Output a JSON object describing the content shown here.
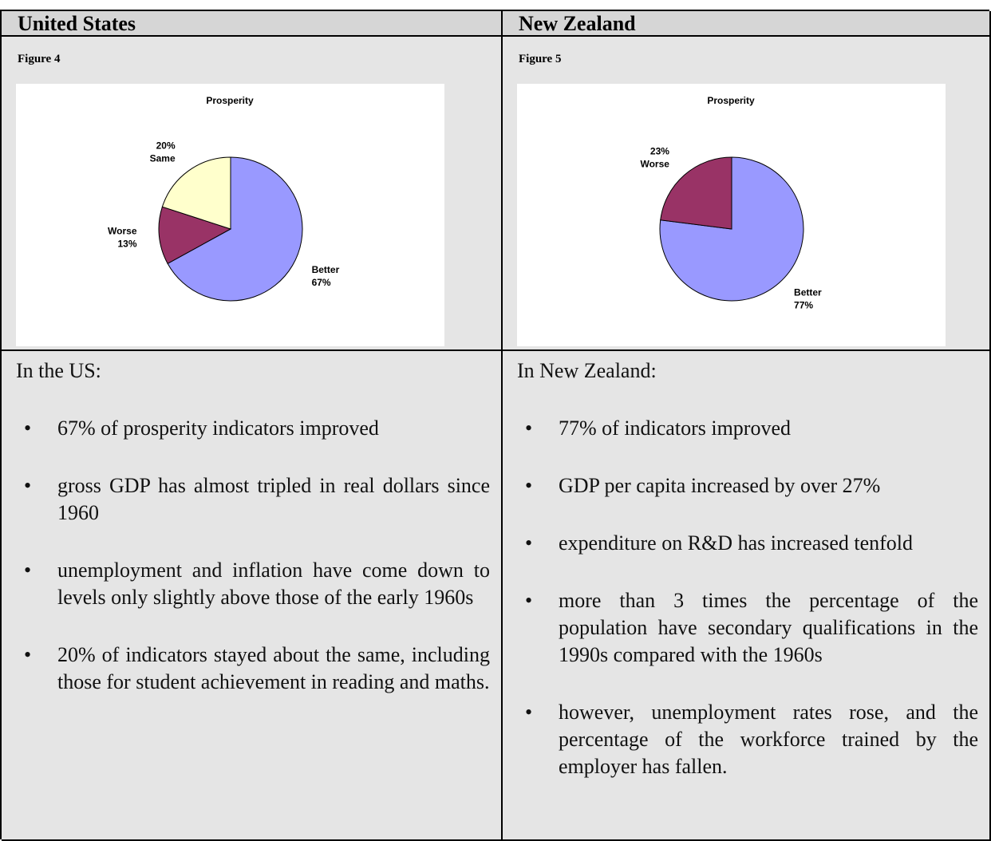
{
  "table": {
    "headings": [
      "United States",
      "New Zealand"
    ],
    "figure_labels": [
      "Figure 4",
      "Figure 5"
    ],
    "intros": [
      "In the US:",
      "In New Zealand:"
    ],
    "bullets": [
      [
        "67% of prosperity indicators improved",
        "gross GDP has almost tripled in real dollars since 1960",
        "unemployment and inflation have come down to levels only slightly above those of the early 1960s",
        "20% of indicators stayed about the same, including those for student achievement in reading and maths."
      ],
      [
        "77% of indicators improved",
        "GDP per capita increased by over 27%",
        "expenditure on R&D has increased tenfold",
        "more than 3 times the percentage of the population have secondary qualifications in the 1990s compared with the 1960s",
        "however, unemployment rates rose, and the percentage of the workforce trained by the employer has fallen."
      ]
    ]
  },
  "chart_data": [
    {
      "type": "pie",
      "title": "Prosperity",
      "categories": [
        "Better",
        "Worse",
        "Same"
      ],
      "values": [
        67,
        13,
        20
      ],
      "value_labels": [
        "67%",
        "13%",
        "20%"
      ],
      "colors": [
        "#9999ff",
        "#993366",
        "#ffffcc"
      ]
    },
    {
      "type": "pie",
      "title": "Prosperity",
      "categories": [
        "Better",
        "Worse"
      ],
      "values": [
        77,
        23
      ],
      "value_labels": [
        "77%",
        "23%"
      ],
      "colors": [
        "#9999ff",
        "#993366"
      ]
    }
  ]
}
